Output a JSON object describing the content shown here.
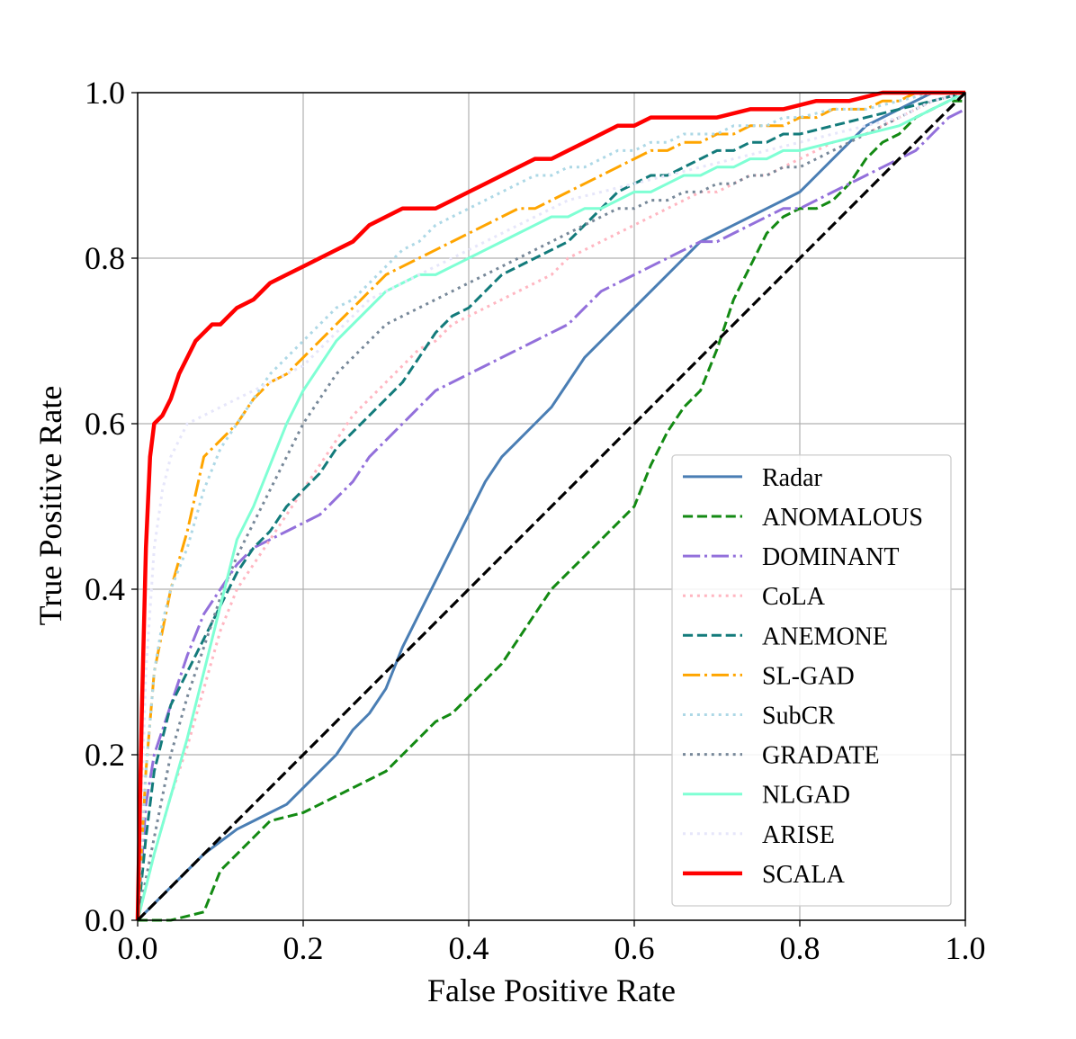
{
  "chart_data": {
    "type": "line",
    "title": "",
    "xlabel": "False Positive Rate",
    "ylabel": "True Positive Rate",
    "xlim": [
      0,
      1
    ],
    "ylim": [
      0,
      1
    ],
    "xticks": [
      "0.0",
      "0.2",
      "0.4",
      "0.6",
      "0.8",
      "1.0"
    ],
    "yticks": [
      "0.0",
      "0.2",
      "0.4",
      "0.6",
      "0.8",
      "1.0"
    ],
    "grid": true,
    "legend_position": "bottom-right",
    "reference_line": {
      "x": [
        0,
        1
      ],
      "y": [
        0,
        1
      ],
      "color": "#000000",
      "style": "dashed"
    },
    "series": [
      {
        "name": "Radar",
        "color": "#4a7eb4",
        "style": "solid",
        "x": [
          0,
          0.02,
          0.04,
          0.06,
          0.08,
          0.1,
          0.12,
          0.14,
          0.16,
          0.18,
          0.2,
          0.22,
          0.24,
          0.26,
          0.28,
          0.3,
          0.32,
          0.34,
          0.36,
          0.38,
          0.4,
          0.42,
          0.44,
          0.46,
          0.48,
          0.5,
          0.52,
          0.54,
          0.56,
          0.58,
          0.6,
          0.62,
          0.64,
          0.66,
          0.68,
          0.7,
          0.72,
          0.74,
          0.76,
          0.78,
          0.8,
          0.82,
          0.84,
          0.86,
          0.88,
          0.9,
          0.92,
          0.94,
          0.96,
          0.98,
          1.0
        ],
        "y": [
          0,
          0.02,
          0.04,
          0.06,
          0.08,
          0.095,
          0.11,
          0.12,
          0.13,
          0.14,
          0.16,
          0.18,
          0.2,
          0.23,
          0.25,
          0.28,
          0.33,
          0.37,
          0.41,
          0.45,
          0.49,
          0.53,
          0.56,
          0.58,
          0.6,
          0.62,
          0.65,
          0.68,
          0.7,
          0.72,
          0.74,
          0.76,
          0.78,
          0.8,
          0.82,
          0.83,
          0.84,
          0.85,
          0.86,
          0.87,
          0.88,
          0.9,
          0.92,
          0.94,
          0.96,
          0.97,
          0.98,
          0.99,
          1.0,
          1.0,
          1.0
        ]
      },
      {
        "name": "ANOMALOUS",
        "color": "#138a13",
        "style": "dashed",
        "x": [
          0,
          0.04,
          0.08,
          0.1,
          0.12,
          0.14,
          0.16,
          0.2,
          0.24,
          0.28,
          0.3,
          0.32,
          0.34,
          0.36,
          0.38,
          0.4,
          0.42,
          0.44,
          0.46,
          0.48,
          0.5,
          0.52,
          0.54,
          0.56,
          0.58,
          0.6,
          0.62,
          0.64,
          0.66,
          0.68,
          0.7,
          0.72,
          0.74,
          0.76,
          0.78,
          0.8,
          0.82,
          0.84,
          0.86,
          0.88,
          0.9,
          0.92,
          0.94,
          0.96,
          0.98,
          1.0
        ],
        "y": [
          0,
          0,
          0.01,
          0.06,
          0.08,
          0.1,
          0.12,
          0.13,
          0.15,
          0.17,
          0.18,
          0.2,
          0.22,
          0.24,
          0.25,
          0.27,
          0.29,
          0.31,
          0.34,
          0.37,
          0.4,
          0.42,
          0.44,
          0.46,
          0.48,
          0.5,
          0.55,
          0.59,
          0.62,
          0.64,
          0.69,
          0.75,
          0.79,
          0.83,
          0.85,
          0.86,
          0.86,
          0.87,
          0.89,
          0.92,
          0.94,
          0.95,
          0.97,
          0.98,
          0.99,
          0.99
        ]
      },
      {
        "name": "DOMINANT",
        "color": "#9370db",
        "style": "dashdot",
        "x": [
          0,
          0.01,
          0.02,
          0.04,
          0.06,
          0.08,
          0.1,
          0.12,
          0.14,
          0.16,
          0.18,
          0.2,
          0.22,
          0.24,
          0.26,
          0.28,
          0.3,
          0.32,
          0.34,
          0.36,
          0.38,
          0.4,
          0.42,
          0.44,
          0.46,
          0.48,
          0.5,
          0.52,
          0.54,
          0.56,
          0.58,
          0.6,
          0.62,
          0.64,
          0.66,
          0.68,
          0.7,
          0.72,
          0.74,
          0.76,
          0.78,
          0.8,
          0.82,
          0.84,
          0.86,
          0.88,
          0.9,
          0.92,
          0.94,
          0.96,
          0.98,
          1.0
        ],
        "y": [
          0,
          0.14,
          0.2,
          0.26,
          0.32,
          0.37,
          0.4,
          0.43,
          0.45,
          0.46,
          0.47,
          0.48,
          0.49,
          0.51,
          0.53,
          0.56,
          0.58,
          0.6,
          0.62,
          0.64,
          0.65,
          0.66,
          0.67,
          0.68,
          0.69,
          0.7,
          0.71,
          0.72,
          0.74,
          0.76,
          0.77,
          0.78,
          0.79,
          0.8,
          0.81,
          0.82,
          0.82,
          0.83,
          0.84,
          0.85,
          0.86,
          0.86,
          0.87,
          0.88,
          0.89,
          0.9,
          0.91,
          0.92,
          0.93,
          0.95,
          0.97,
          0.98
        ]
      },
      {
        "name": "CoLA",
        "color": "#ffb6c1",
        "style": "dotted",
        "x": [
          0,
          0.02,
          0.04,
          0.06,
          0.08,
          0.1,
          0.12,
          0.14,
          0.16,
          0.18,
          0.2,
          0.22,
          0.24,
          0.26,
          0.28,
          0.3,
          0.32,
          0.34,
          0.36,
          0.38,
          0.4,
          0.42,
          0.44,
          0.46,
          0.48,
          0.5,
          0.52,
          0.54,
          0.56,
          0.58,
          0.6,
          0.62,
          0.64,
          0.66,
          0.68,
          0.7,
          0.72,
          0.74,
          0.76,
          0.78,
          0.8,
          0.84,
          0.88,
          0.92,
          0.96,
          1.0
        ],
        "y": [
          0,
          0.08,
          0.15,
          0.21,
          0.28,
          0.35,
          0.4,
          0.43,
          0.46,
          0.49,
          0.52,
          0.55,
          0.58,
          0.61,
          0.63,
          0.65,
          0.67,
          0.69,
          0.7,
          0.72,
          0.73,
          0.74,
          0.75,
          0.76,
          0.77,
          0.78,
          0.8,
          0.81,
          0.82,
          0.83,
          0.84,
          0.85,
          0.86,
          0.87,
          0.88,
          0.88,
          0.89,
          0.9,
          0.9,
          0.91,
          0.92,
          0.94,
          0.95,
          0.97,
          0.99,
          1.0
        ]
      },
      {
        "name": "ANEMONE",
        "color": "#137b7b",
        "style": "dashed",
        "x": [
          0,
          0.01,
          0.02,
          0.04,
          0.06,
          0.08,
          0.1,
          0.12,
          0.14,
          0.16,
          0.18,
          0.2,
          0.22,
          0.24,
          0.26,
          0.28,
          0.3,
          0.32,
          0.34,
          0.36,
          0.38,
          0.4,
          0.42,
          0.44,
          0.46,
          0.48,
          0.5,
          0.52,
          0.54,
          0.56,
          0.58,
          0.6,
          0.62,
          0.64,
          0.66,
          0.68,
          0.7,
          0.72,
          0.74,
          0.76,
          0.78,
          0.8,
          0.84,
          0.88,
          0.92,
          0.96,
          1.0
        ],
        "y": [
          0,
          0.1,
          0.18,
          0.26,
          0.3,
          0.34,
          0.38,
          0.42,
          0.45,
          0.47,
          0.5,
          0.52,
          0.54,
          0.57,
          0.59,
          0.61,
          0.63,
          0.65,
          0.68,
          0.71,
          0.73,
          0.74,
          0.76,
          0.78,
          0.79,
          0.8,
          0.81,
          0.82,
          0.84,
          0.86,
          0.88,
          0.89,
          0.9,
          0.9,
          0.91,
          0.92,
          0.93,
          0.93,
          0.94,
          0.94,
          0.95,
          0.95,
          0.96,
          0.97,
          0.98,
          0.99,
          1.0
        ]
      },
      {
        "name": "SL-GAD",
        "color": "#ffa500",
        "style": "dashdot",
        "x": [
          0,
          0.01,
          0.02,
          0.03,
          0.04,
          0.06,
          0.08,
          0.1,
          0.12,
          0.14,
          0.16,
          0.18,
          0.2,
          0.22,
          0.24,
          0.26,
          0.28,
          0.3,
          0.32,
          0.34,
          0.36,
          0.38,
          0.4,
          0.42,
          0.44,
          0.46,
          0.48,
          0.5,
          0.52,
          0.54,
          0.56,
          0.58,
          0.6,
          0.62,
          0.64,
          0.66,
          0.68,
          0.7,
          0.72,
          0.74,
          0.76,
          0.78,
          0.8,
          0.82,
          0.84,
          0.86,
          0.88,
          0.9,
          0.92,
          0.94,
          0.96,
          0.98,
          1.0
        ],
        "y": [
          0,
          0.18,
          0.3,
          0.35,
          0.4,
          0.47,
          0.56,
          0.58,
          0.6,
          0.63,
          0.65,
          0.66,
          0.68,
          0.7,
          0.72,
          0.74,
          0.76,
          0.78,
          0.79,
          0.8,
          0.81,
          0.82,
          0.83,
          0.84,
          0.85,
          0.86,
          0.86,
          0.87,
          0.88,
          0.89,
          0.9,
          0.91,
          0.92,
          0.93,
          0.93,
          0.94,
          0.94,
          0.95,
          0.95,
          0.96,
          0.96,
          0.96,
          0.97,
          0.97,
          0.98,
          0.98,
          0.98,
          0.99,
          0.99,
          1.0,
          1.0,
          1.0,
          1.0
        ]
      },
      {
        "name": "SubCR",
        "color": "#add8e6",
        "style": "dotted",
        "x": [
          0,
          0.01,
          0.02,
          0.03,
          0.04,
          0.06,
          0.08,
          0.1,
          0.12,
          0.14,
          0.16,
          0.18,
          0.2,
          0.22,
          0.24,
          0.26,
          0.28,
          0.3,
          0.32,
          0.34,
          0.36,
          0.38,
          0.4,
          0.42,
          0.44,
          0.46,
          0.48,
          0.5,
          0.52,
          0.54,
          0.56,
          0.58,
          0.6,
          0.62,
          0.64,
          0.66,
          0.68,
          0.7,
          0.72,
          0.74,
          0.76,
          0.78,
          0.8,
          0.84,
          0.88,
          0.92,
          0.96,
          1.0
        ],
        "y": [
          0,
          0.18,
          0.3,
          0.36,
          0.4,
          0.45,
          0.52,
          0.57,
          0.6,
          0.63,
          0.66,
          0.68,
          0.7,
          0.72,
          0.74,
          0.75,
          0.77,
          0.79,
          0.81,
          0.82,
          0.84,
          0.85,
          0.86,
          0.87,
          0.88,
          0.89,
          0.9,
          0.9,
          0.91,
          0.91,
          0.92,
          0.93,
          0.93,
          0.94,
          0.94,
          0.95,
          0.95,
          0.95,
          0.96,
          0.96,
          0.96,
          0.97,
          0.97,
          0.98,
          0.98,
          0.99,
          1.0,
          1.0
        ]
      },
      {
        "name": "GRADATE",
        "color": "#778899",
        "style": "dotted",
        "x": [
          0,
          0.02,
          0.04,
          0.06,
          0.08,
          0.1,
          0.12,
          0.14,
          0.16,
          0.18,
          0.2,
          0.22,
          0.24,
          0.26,
          0.28,
          0.3,
          0.32,
          0.34,
          0.36,
          0.38,
          0.4,
          0.42,
          0.44,
          0.46,
          0.48,
          0.5,
          0.52,
          0.54,
          0.56,
          0.58,
          0.6,
          0.62,
          0.64,
          0.66,
          0.68,
          0.7,
          0.72,
          0.74,
          0.76,
          0.78,
          0.8,
          0.84,
          0.88,
          0.92,
          0.96,
          1.0
        ],
        "y": [
          0,
          0.1,
          0.2,
          0.27,
          0.33,
          0.39,
          0.44,
          0.48,
          0.52,
          0.56,
          0.6,
          0.63,
          0.66,
          0.68,
          0.7,
          0.72,
          0.73,
          0.74,
          0.75,
          0.76,
          0.77,
          0.78,
          0.79,
          0.8,
          0.81,
          0.82,
          0.83,
          0.84,
          0.85,
          0.86,
          0.86,
          0.87,
          0.87,
          0.88,
          0.88,
          0.89,
          0.89,
          0.9,
          0.9,
          0.91,
          0.91,
          0.93,
          0.95,
          0.97,
          0.99,
          1.0
        ]
      },
      {
        "name": "NLGAD",
        "color": "#7fffd4",
        "style": "solid",
        "x": [
          0,
          0.02,
          0.04,
          0.06,
          0.08,
          0.1,
          0.12,
          0.14,
          0.16,
          0.18,
          0.2,
          0.22,
          0.24,
          0.26,
          0.28,
          0.3,
          0.32,
          0.34,
          0.36,
          0.38,
          0.4,
          0.42,
          0.44,
          0.46,
          0.48,
          0.5,
          0.52,
          0.54,
          0.56,
          0.58,
          0.6,
          0.62,
          0.64,
          0.66,
          0.68,
          0.7,
          0.72,
          0.74,
          0.76,
          0.78,
          0.8,
          0.84,
          0.88,
          0.92,
          0.96,
          1.0
        ],
        "y": [
          0,
          0.08,
          0.15,
          0.22,
          0.3,
          0.38,
          0.46,
          0.5,
          0.55,
          0.6,
          0.64,
          0.67,
          0.7,
          0.72,
          0.74,
          0.76,
          0.77,
          0.78,
          0.78,
          0.79,
          0.8,
          0.81,
          0.82,
          0.83,
          0.84,
          0.85,
          0.85,
          0.86,
          0.86,
          0.87,
          0.88,
          0.88,
          0.89,
          0.9,
          0.9,
          0.91,
          0.91,
          0.92,
          0.92,
          0.93,
          0.93,
          0.94,
          0.95,
          0.96,
          0.98,
          1.0
        ]
      },
      {
        "name": "ARISE",
        "color": "#e6e6fa",
        "style": "dotted",
        "x": [
          0,
          0.01,
          0.02,
          0.03,
          0.04,
          0.05,
          0.06,
          0.08,
          0.1,
          0.12,
          0.14,
          0.16,
          0.18,
          0.2,
          0.22,
          0.24,
          0.26,
          0.28,
          0.3,
          0.32,
          0.34,
          0.36,
          0.38,
          0.4,
          0.44,
          0.48,
          0.52,
          0.56,
          0.6,
          0.64,
          0.68,
          0.72,
          0.76,
          0.8,
          0.84,
          0.88,
          0.92,
          0.96,
          1.0
        ],
        "y": [
          0,
          0.3,
          0.45,
          0.52,
          0.56,
          0.58,
          0.6,
          0.61,
          0.62,
          0.63,
          0.64,
          0.65,
          0.66,
          0.67,
          0.69,
          0.71,
          0.73,
          0.75,
          0.76,
          0.77,
          0.78,
          0.79,
          0.8,
          0.81,
          0.83,
          0.85,
          0.87,
          0.88,
          0.89,
          0.9,
          0.91,
          0.92,
          0.93,
          0.94,
          0.95,
          0.96,
          0.97,
          0.99,
          1.0
        ]
      },
      {
        "name": "SCALA",
        "color": "#ff0000",
        "style": "solid",
        "x": [
          0,
          0.005,
          0.01,
          0.015,
          0.02,
          0.03,
          0.04,
          0.05,
          0.06,
          0.07,
          0.08,
          0.09,
          0.1,
          0.12,
          0.14,
          0.16,
          0.18,
          0.2,
          0.22,
          0.24,
          0.26,
          0.28,
          0.3,
          0.32,
          0.34,
          0.36,
          0.38,
          0.4,
          0.42,
          0.44,
          0.46,
          0.48,
          0.5,
          0.52,
          0.54,
          0.56,
          0.58,
          0.6,
          0.62,
          0.66,
          0.7,
          0.74,
          0.78,
          0.82,
          0.86,
          0.9,
          0.94,
          1.0
        ],
        "y": [
          0,
          0.25,
          0.45,
          0.56,
          0.6,
          0.61,
          0.63,
          0.66,
          0.68,
          0.7,
          0.71,
          0.72,
          0.72,
          0.74,
          0.75,
          0.77,
          0.78,
          0.79,
          0.8,
          0.81,
          0.82,
          0.84,
          0.85,
          0.86,
          0.86,
          0.86,
          0.87,
          0.88,
          0.89,
          0.9,
          0.91,
          0.92,
          0.92,
          0.93,
          0.94,
          0.95,
          0.96,
          0.96,
          0.97,
          0.97,
          0.97,
          0.98,
          0.98,
          0.99,
          0.99,
          1.0,
          1.0,
          1.0
        ]
      }
    ]
  }
}
